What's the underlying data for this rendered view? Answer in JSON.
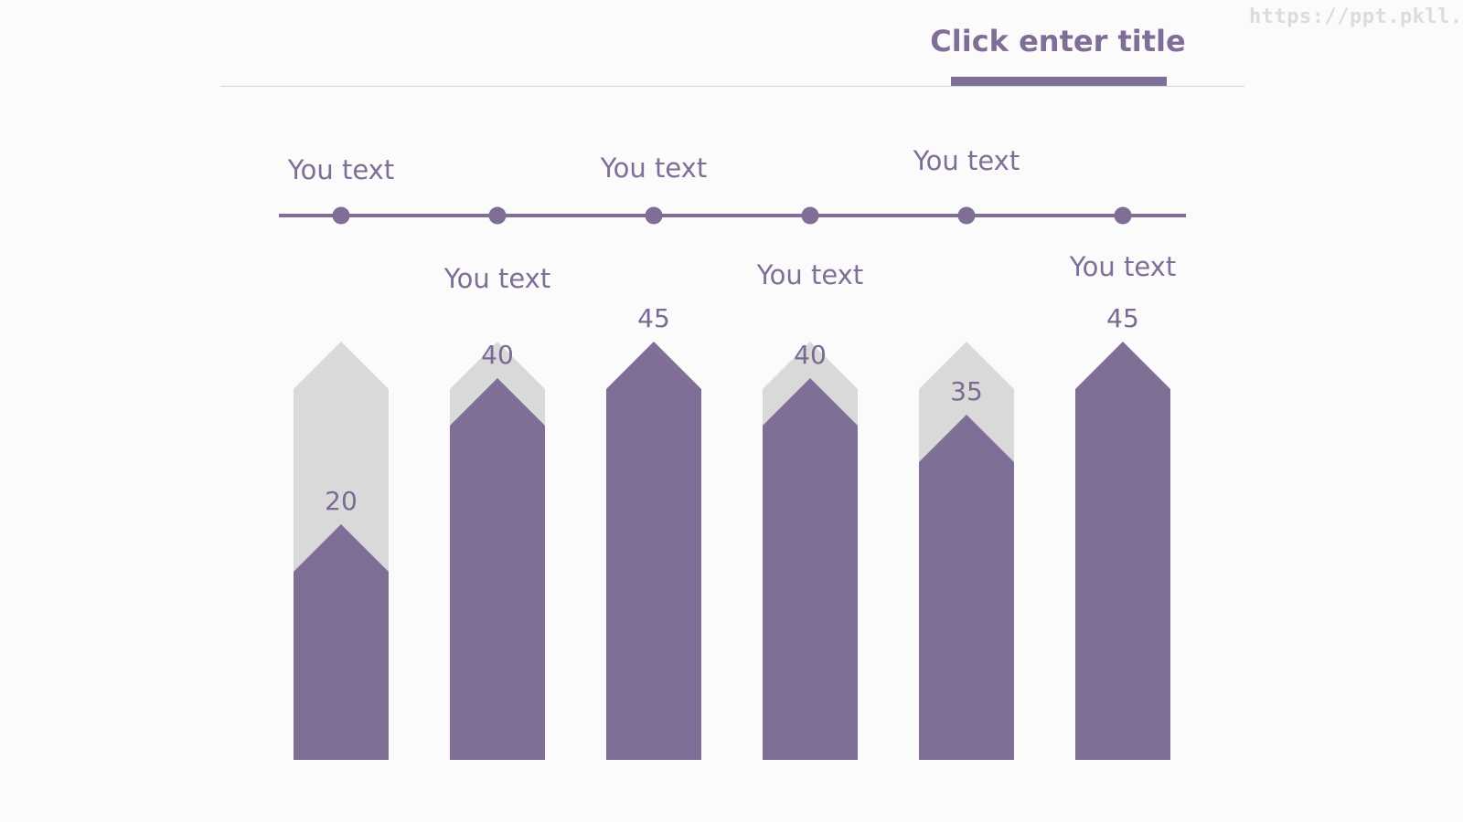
{
  "header": {
    "title": "Click enter title",
    "watermark": "https://ppt.pkll.de"
  },
  "colors": {
    "accent": "#7f6e96",
    "track": "#d9d9d9",
    "rule": "#d6d6d6",
    "background": "#fbfbfc"
  },
  "chart_data": {
    "type": "bar",
    "categories": [
      "",
      "",
      "",
      "",
      "",
      ""
    ],
    "values": [
      20,
      40,
      45,
      40,
      35,
      45
    ],
    "data_labels": [
      "20",
      "40",
      "45",
      "40",
      "35",
      "45"
    ],
    "timeline_labels": [
      "You text",
      "You text",
      "You text",
      "You text",
      "You text",
      "You text"
    ],
    "timeline_label_positions": [
      "above",
      "below",
      "above",
      "below",
      "above",
      "below"
    ],
    "ylim": [
      0,
      45
    ],
    "grid": false,
    "legend": "none",
    "title": "",
    "xlabel": "",
    "ylabel": ""
  }
}
